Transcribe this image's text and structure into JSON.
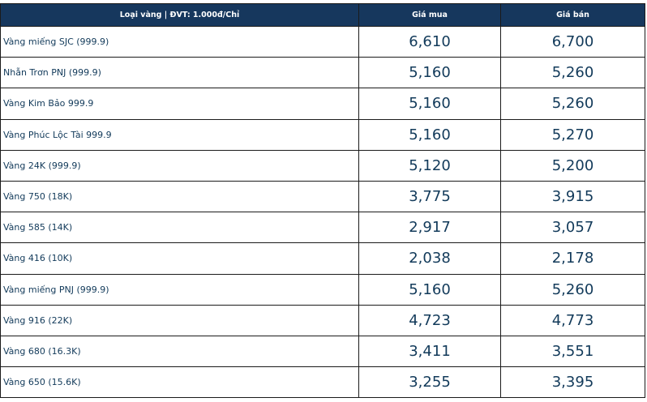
{
  "table": {
    "headers": {
      "type": "Loại vàng | ĐVT: 1.000đ/Chỉ",
      "buy": "Giá mua",
      "sell": "Giá bán"
    },
    "rows": [
      {
        "name": "Vàng miếng SJC (999.9)",
        "buy": "6,610",
        "sell": "6,700"
      },
      {
        "name": "Nhẫn Trơn PNJ (999.9)",
        "buy": "5,160",
        "sell": "5,260"
      },
      {
        "name": "Vàng Kim Bảo 999.9",
        "buy": "5,160",
        "sell": "5,260"
      },
      {
        "name": "Vàng Phúc Lộc Tài 999.9",
        "buy": "5,160",
        "sell": "5,270"
      },
      {
        "name": "Vàng 24K (999.9)",
        "buy": "5,120",
        "sell": "5,200"
      },
      {
        "name": "Vàng 750 (18K)",
        "buy": "3,775",
        "sell": "3,915"
      },
      {
        "name": "Vàng 585 (14K)",
        "buy": "2,917",
        "sell": "3,057"
      },
      {
        "name": "Vàng 416 (10K)",
        "buy": "2,038",
        "sell": "2,178"
      },
      {
        "name": "Vàng miếng PNJ (999.9)",
        "buy": "5,160",
        "sell": "5,260"
      },
      {
        "name": "Vàng 916 (22K)",
        "buy": "4,723",
        "sell": "4,773"
      },
      {
        "name": "Vàng 680 (16.3K)",
        "buy": "3,411",
        "sell": "3,551"
      },
      {
        "name": "Vàng 650 (15.6K)",
        "buy": "3,255",
        "sell": "3,395"
      }
    ]
  }
}
